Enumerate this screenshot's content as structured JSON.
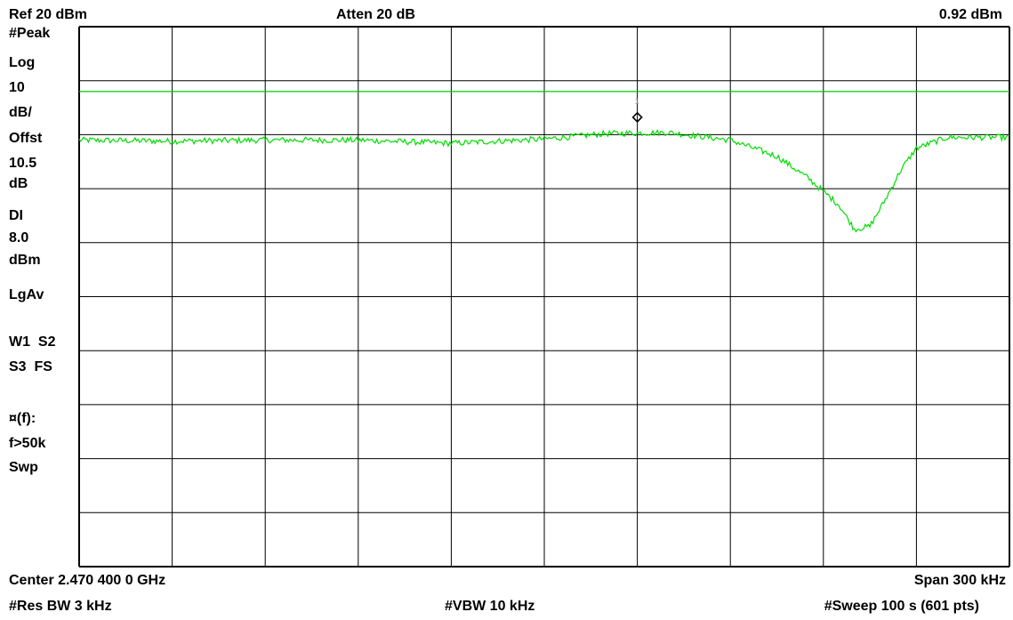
{
  "header": {
    "ref": "Ref 20 dBm",
    "atten": "Atten 20 dB",
    "marker_value": "0.92 dBm"
  },
  "side_labels": {
    "detector": "#Peak",
    "scale_type": "Log",
    "scale_value": "10",
    "scale_unit": "dB/",
    "offset_label": "Offst",
    "offset_value": "10.5",
    "offset_unit": "dB",
    "display_line_label": "DI",
    "display_line_value": "8.0",
    "display_line_unit": "dBm",
    "averaging": "LgAv",
    "trace_modes_1": "W1  S2",
    "trace_modes_2": "S3  FS",
    "function_label": "¤(f):",
    "function_value": "f>50k",
    "function_mode": "Swp"
  },
  "footer": {
    "center": "Center 2.470 400 0 GHz",
    "span": "Span 300 kHz",
    "rbw": "#Res BW 3 kHz",
    "vbw": "#VBW 10 kHz",
    "sweep": "#Sweep 100 s (601 pts)"
  },
  "marker": {
    "number": "1",
    "frequency_offset_khz": 30,
    "amplitude_dbm": 0.92
  },
  "chart_data": {
    "type": "line",
    "xlabel": "",
    "ylabel": "",
    "x_range_khz": [
      -150,
      150
    ],
    "ylim": [
      -80,
      20
    ],
    "grid": true,
    "colors": {
      "trace": "#00dd00",
      "display_line": "#00cc00",
      "grid": "#000000",
      "marker": "#000000"
    },
    "display_line_dbm": 8.0,
    "series": [
      {
        "x_khz": [
          -150,
          -120,
          -90,
          -60,
          -30,
          0,
          20,
          40,
          60,
          75,
          85,
          95,
          100,
          105,
          110,
          115,
          120,
          130,
          150
        ],
        "y_dbm": [
          -1.0,
          -1.2,
          -1.0,
          -1.0,
          -1.6,
          -0.8,
          0.2,
          0.4,
          -1.0,
          -4.0,
          -8.0,
          -13.0,
          -17.5,
          -17.0,
          -12.0,
          -6.5,
          -2.5,
          -0.5,
          -0.5
        ]
      }
    ]
  }
}
